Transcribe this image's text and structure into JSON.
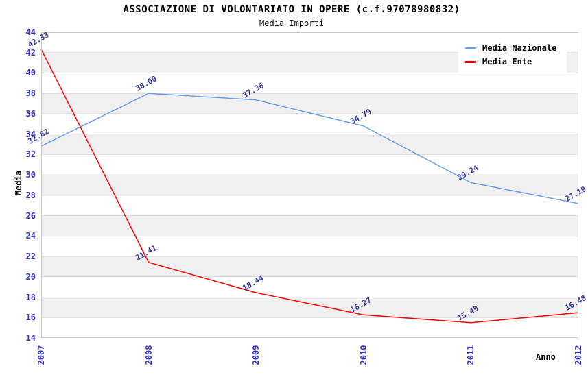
{
  "title": "ASSOCIAZIONE DI VOLONTARIATO IN OPERE (c.f.97078980832)",
  "subtitle": "Media Importi",
  "legend": {
    "items": [
      {
        "label": "Media Nazionale",
        "color": "#6CA0E6"
      },
      {
        "label": "Media Ente",
        "color": "#FF0000"
      }
    ]
  },
  "chart_data": {
    "type": "line",
    "title": "ASSOCIAZIONE DI VOLONTARIATO IN OPERE (c.f.97078980832)",
    "subtitle": "Media Importi",
    "xlabel": "Anno",
    "ylabel": "Media",
    "x": [
      2007,
      2008,
      2009,
      2010,
      2011,
      2012
    ],
    "series": [
      {
        "name": "Media Nazionale",
        "color": "#6CA0E6",
        "values": [
          32.82,
          38.0,
          37.36,
          34.79,
          29.24,
          27.19
        ]
      },
      {
        "name": "Media Ente",
        "color": "#FF0000",
        "values": [
          42.33,
          21.41,
          18.44,
          16.27,
          15.49,
          16.48
        ]
      }
    ],
    "ylim": [
      14,
      44
    ],
    "ytick_step": 2,
    "grid": true,
    "band_color": "#F0F0F0",
    "grid_color": "#D9D9D9",
    "border_color": "#C8C8C8",
    "tick_color": "#3333CC",
    "data_label_color": "#333A99",
    "legend_position": "top-right"
  }
}
